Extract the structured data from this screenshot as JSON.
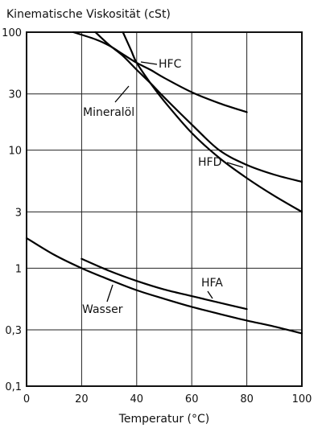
{
  "chart_data": {
    "type": "line",
    "title": "Kinematische Viskosität (cSt)",
    "xlabel": "Temperatur (°C)",
    "ylabel": "",
    "y_scale": "log",
    "xlim": [
      0,
      100
    ],
    "ylim": [
      0.1,
      100
    ],
    "grid": true,
    "x_ticks": [
      0,
      20,
      40,
      60,
      80,
      100
    ],
    "x_tick_labels": [
      "0",
      "20",
      "40",
      "60",
      "80",
      "100"
    ],
    "y_ticks": [
      0.1,
      0.3,
      1,
      3,
      10,
      30,
      100
    ],
    "y_tick_labels": [
      "0,1",
      "0,3",
      "1",
      "3",
      "10",
      "30",
      "100"
    ],
    "series": [
      {
        "name": "HFC",
        "x": [
          17,
          25,
          30,
          35,
          40,
          45,
          50,
          60,
          70,
          80
        ],
        "y": [
          100,
          87,
          77,
          65,
          55,
          48,
          41,
          31,
          25,
          21
        ]
      },
      {
        "name": "Mineralöl",
        "x": [
          35,
          38,
          40,
          45,
          50,
          60,
          70,
          80,
          90,
          100
        ],
        "y": [
          100,
          70,
          55,
          37,
          26,
          14,
          8.6,
          5.8,
          4.1,
          3.0
        ]
      },
      {
        "name": "HFD",
        "x": [
          25,
          30,
          35,
          40,
          45,
          50,
          60,
          70,
          80,
          90,
          100
        ],
        "y": [
          100,
          78,
          63,
          48,
          37,
          28,
          16.5,
          10,
          7.5,
          6.2,
          5.4
        ]
      },
      {
        "name": "HFA",
        "x": [
          20,
          30,
          40,
          50,
          60,
          70,
          80
        ],
        "y": [
          1.2,
          0.95,
          0.78,
          0.66,
          0.58,
          0.51,
          0.45
        ]
      },
      {
        "name": "Wasser",
        "x": [
          0,
          10,
          20,
          30,
          40,
          50,
          60,
          70,
          80,
          90,
          100
        ],
        "y": [
          1.8,
          1.3,
          1.0,
          0.8,
          0.65,
          0.55,
          0.47,
          0.41,
          0.36,
          0.32,
          0.28
        ]
      }
    ]
  }
}
